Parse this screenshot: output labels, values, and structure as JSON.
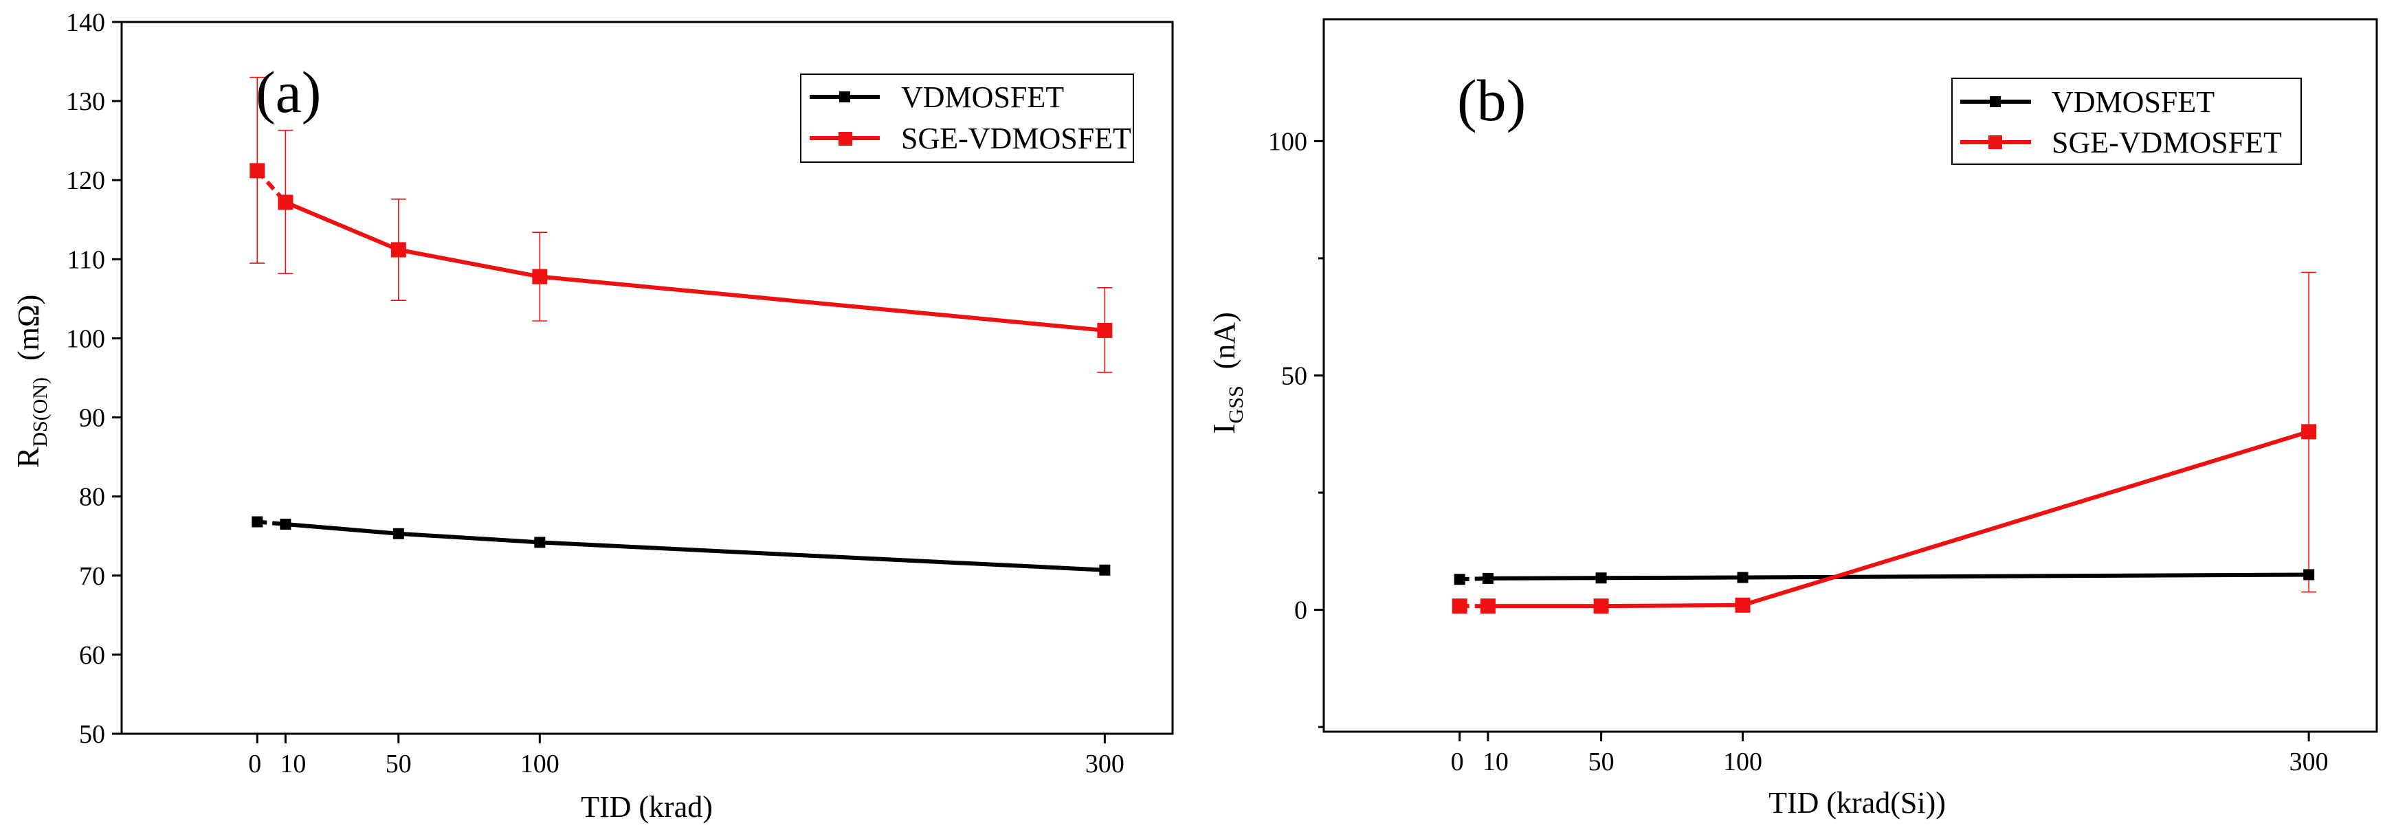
{
  "chart_data": [
    {
      "type": "line",
      "panel_label": "(a)",
      "xlabel": "TID (krad)",
      "ylabel_main": "R",
      "ylabel_sub": "DS(ON)",
      "ylabel_unit": "(mΩ)",
      "x_ticks": [
        "0",
        "10",
        "50",
        "100",
        "300"
      ],
      "x_tick_values": [
        0,
        10,
        50,
        100,
        300
      ],
      "y_ticks": [
        "50",
        "60",
        "70",
        "80",
        "90",
        "100",
        "110",
        "120",
        "130",
        "140"
      ],
      "y_tick_values": [
        50,
        60,
        70,
        80,
        90,
        100,
        110,
        120,
        130,
        140
      ],
      "xlim": [
        -48,
        324
      ],
      "ylim": [
        50,
        140
      ],
      "legend_position": "top-right",
      "series": [
        {
          "name": "VDMOSFET",
          "color": "#000000",
          "x": [
            0,
            10,
            50,
            100,
            300
          ],
          "values": [
            76.8,
            76.5,
            75.3,
            74.2,
            70.7
          ]
        },
        {
          "name": "SGE-VDMOSFET",
          "color": "#ee1111",
          "x": [
            0,
            10,
            50,
            100,
            300
          ],
          "values": [
            121.2,
            117.2,
            111.2,
            107.8,
            101.0
          ],
          "error_low": [
            109.5,
            108.2,
            104.8,
            102.2,
            95.7
          ],
          "error_high": [
            133.0,
            126.3,
            117.6,
            113.4,
            106.4
          ]
        }
      ]
    },
    {
      "type": "line",
      "panel_label": "(b)",
      "xlabel": "TID (krad(Si))",
      "ylabel_main": "I",
      "ylabel_sub": "GSS",
      "ylabel_unit": "(nA)",
      "x_ticks": [
        "0",
        "10",
        "50",
        "100",
        "300"
      ],
      "x_tick_values": [
        0,
        10,
        50,
        100,
        300
      ],
      "y_ticks": [
        "0",
        "50",
        "100"
      ],
      "y_tick_values": [
        0,
        50,
        100
      ],
      "y_minor_values": [
        -25,
        25,
        75
      ],
      "xlim": [
        -48,
        324
      ],
      "ylim": [
        -26,
        126
      ],
      "legend_position": "top-right",
      "series": [
        {
          "name": "VDMOSFET",
          "color": "#000000",
          "x": [
            0,
            10,
            50,
            100,
            300
          ],
          "values": [
            6.5,
            6.7,
            6.8,
            6.9,
            7.5
          ]
        },
        {
          "name": "SGE-VDMOSFET",
          "color": "#ee1111",
          "x": [
            0,
            10,
            50,
            100,
            300
          ],
          "values": [
            0.8,
            0.8,
            0.8,
            1.0,
            38.0
          ],
          "error_low": [
            null,
            null,
            null,
            null,
            3.8
          ],
          "error_high": [
            null,
            null,
            null,
            null,
            72.0
          ]
        }
      ]
    }
  ]
}
